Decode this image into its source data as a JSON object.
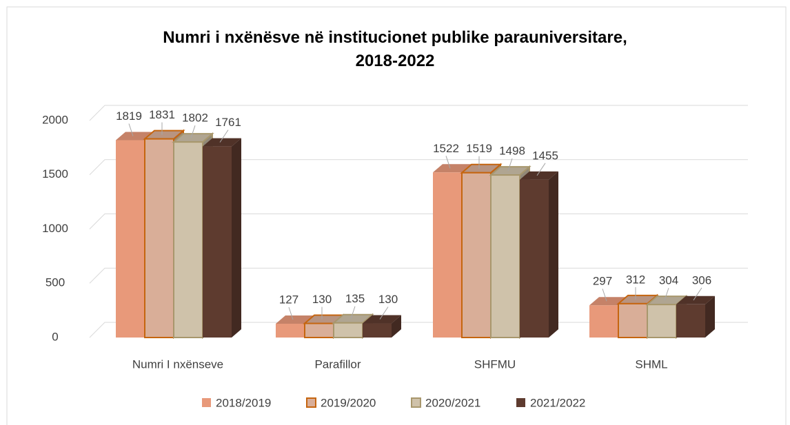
{
  "chart_data": {
    "type": "bar3d",
    "title": "Numri i nxënësve në institucionet publike parauniversitare, 2018-2022",
    "categories": [
      "Numri I nxënseve",
      "Parafillor",
      "SHFMU",
      "SHML"
    ],
    "series": [
      {
        "name": "2018/2019",
        "color": "#e8997a",
        "values": [
          1819,
          127,
          1522,
          297
        ]
      },
      {
        "name": "2019/2020",
        "color": "#d9ae98",
        "values": [
          1831,
          130,
          1519,
          312
        ]
      },
      {
        "name": "2020/2021",
        "color": "#cfc2aa",
        "values": [
          1802,
          135,
          1498,
          304
        ]
      },
      {
        "name": "2021/2022",
        "color": "#5e3b2f",
        "values": [
          1761,
          130,
          1455,
          306
        ]
      }
    ],
    "ylim": [
      0,
      2000
    ],
    "yticks": [
      0,
      500,
      1000,
      1500,
      2000
    ],
    "grid": true,
    "legend": "bottom"
  }
}
